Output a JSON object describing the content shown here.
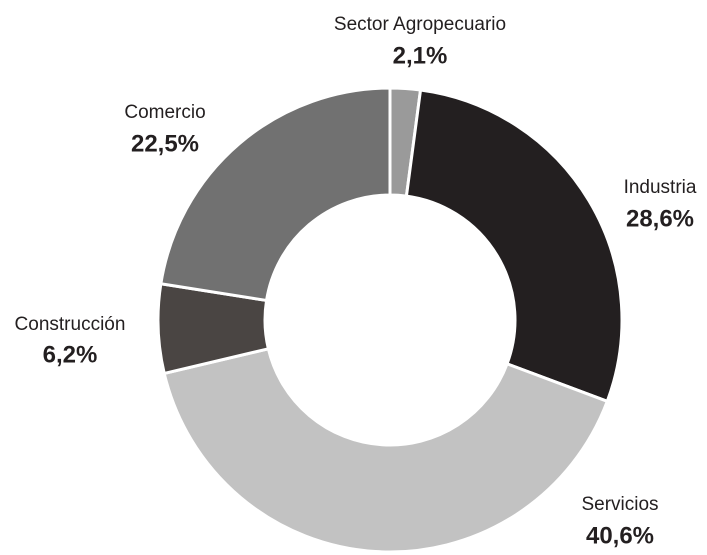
{
  "chart_data": {
    "type": "pie",
    "categories": [
      "Sector Agropecuario",
      "Industria",
      "Servicios",
      "Construcción",
      "Comercio"
    ],
    "values": [
      2.1,
      28.6,
      40.6,
      6.2,
      22.5
    ],
    "value_labels": [
      "2,1%",
      "28,6%",
      "40,6%",
      "6,2%",
      "22,5%"
    ],
    "colors": [
      "#9a9a9a",
      "#231f20",
      "#c2c2c2",
      "#4a4543",
      "#717171"
    ]
  }
}
